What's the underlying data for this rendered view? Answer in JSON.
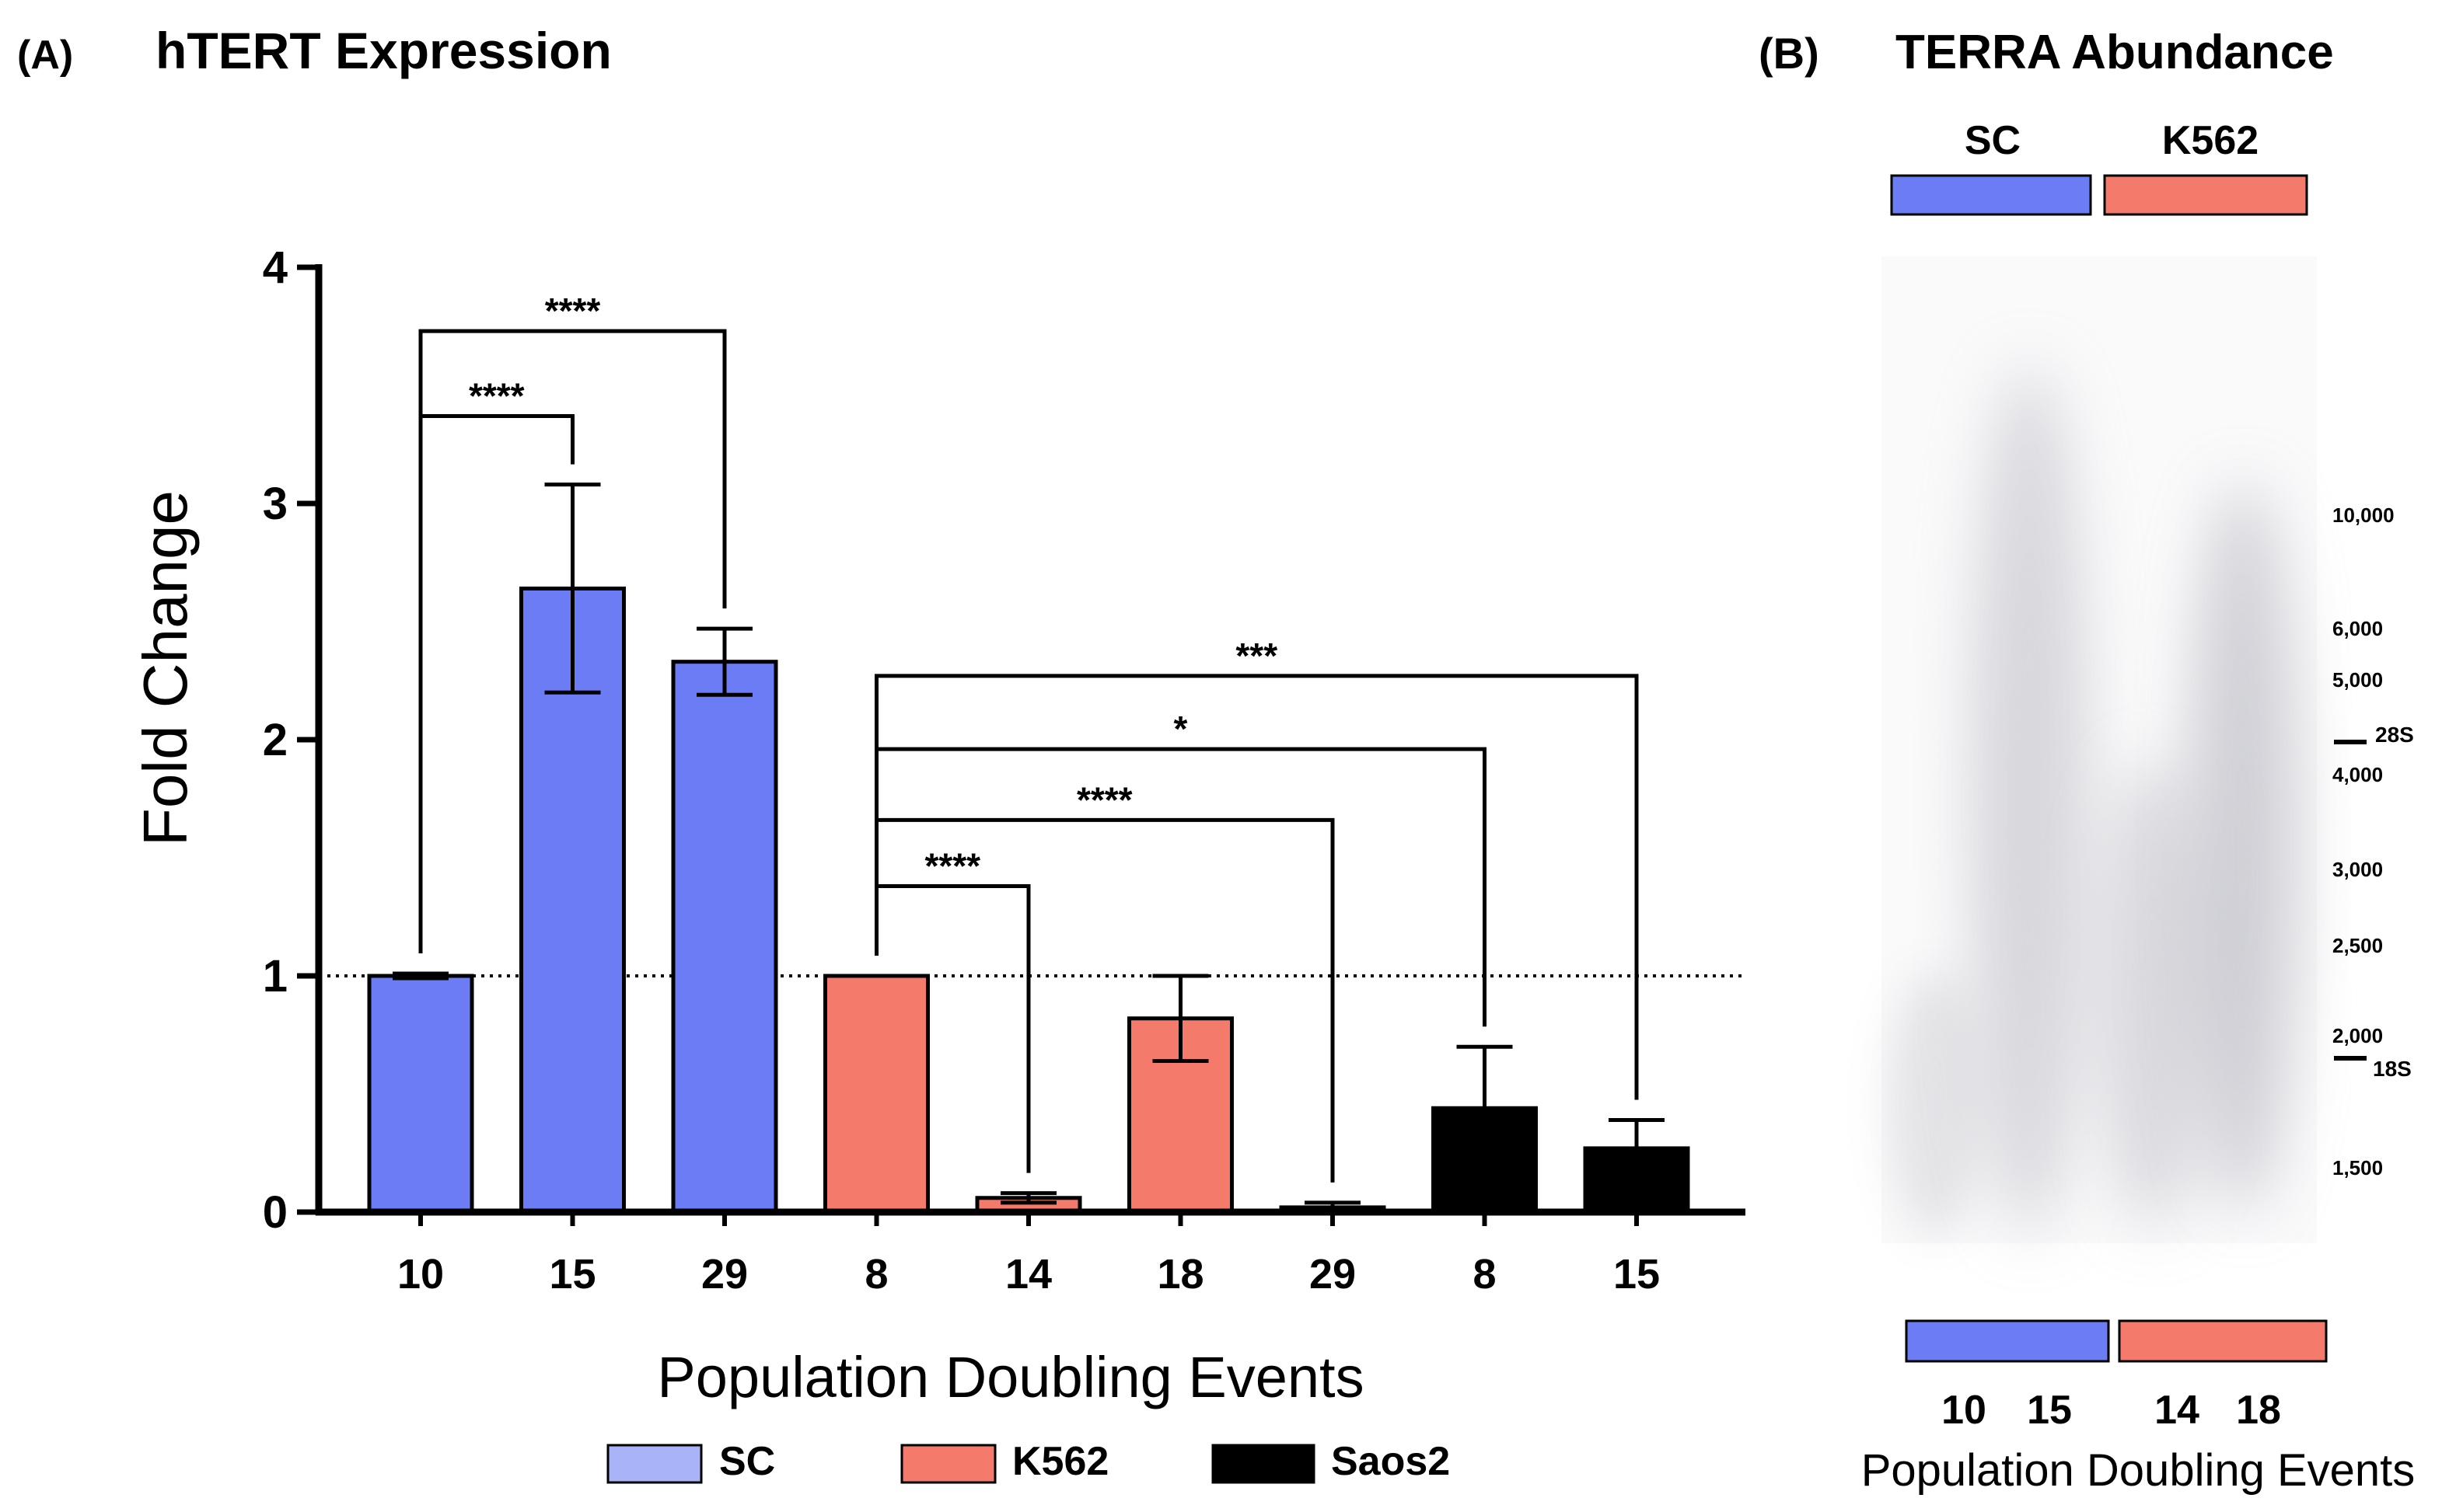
{
  "panel_a": {
    "label": "(A)",
    "title": "hTERT Expression"
  },
  "panel_b": {
    "label": "(B)",
    "title": "TERRA Abundance",
    "top_labels": [
      "SC",
      "K562"
    ],
    "colors": {
      "sc": "#6b7cf5",
      "k562": "#f47a6b"
    },
    "bottom_lane_labels": [
      "10",
      "15",
      "14",
      "18"
    ],
    "xlabel": "Population Doubling Events",
    "ladder": [
      "10,000",
      "6,000",
      "5,000",
      "4,000",
      "3,000",
      "2,500",
      "2,000",
      "1,500"
    ],
    "markers": [
      "28S",
      "18S"
    ]
  },
  "chart_data": {
    "type": "bar",
    "title": "hTERT Expression",
    "xlabel": "Population Doubling Events",
    "ylabel": "Fold Change",
    "ylim": [
      0,
      4
    ],
    "yticks": [
      "0",
      "1",
      "2",
      "3",
      "4"
    ],
    "reference_line": 1,
    "categories": [
      "10",
      "15",
      "29",
      "8",
      "14",
      "18",
      "29",
      "8",
      "15"
    ],
    "values": [
      1.0,
      2.64,
      2.33,
      1.0,
      0.06,
      0.82,
      0.02,
      0.44,
      0.27
    ],
    "errors": [
      0.01,
      0.44,
      0.14,
      0.0,
      0.02,
      0.18,
      0.02,
      0.26,
      0.12
    ],
    "groups": [
      "SC",
      "SC",
      "SC",
      "K562",
      "K562",
      "K562",
      "K562",
      "Saos2",
      "Saos2"
    ],
    "legend": [
      {
        "name": "SC",
        "color": "#6b7cf5",
        "swatch": "#a9b3f7"
      },
      {
        "name": "K562",
        "color": "#f47a6b",
        "swatch": "#f47a6b"
      },
      {
        "name": "Saos2",
        "color": "#000000",
        "swatch": "#000000"
      }
    ],
    "significance": [
      {
        "from": 0,
        "to": 2,
        "label": "****",
        "top": 3.73
      },
      {
        "from": 0,
        "to": 1,
        "label": "****",
        "top": 3.37
      },
      {
        "from": 3,
        "to": 8,
        "label": "***",
        "top": 2.27
      },
      {
        "from": 3,
        "to": 7,
        "label": "*",
        "top": 1.96
      },
      {
        "from": 3,
        "to": 6,
        "label": "****",
        "top": 1.66
      },
      {
        "from": 3,
        "to": 4,
        "label": "****",
        "top": 1.38
      }
    ]
  }
}
